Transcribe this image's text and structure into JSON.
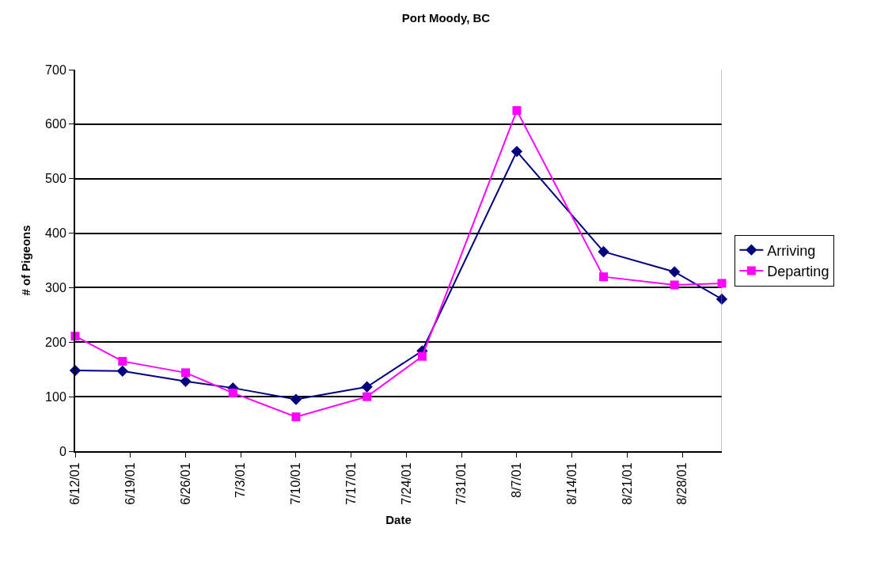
{
  "chart_data": {
    "type": "line",
    "title": "Port Moody, BC",
    "xlabel": "Date",
    "ylabel": "# of Pigeons",
    "x": [
      "--06-12",
      "--06-18",
      "--06-26",
      "--07-02",
      "--07-10",
      "--07-19",
      "--07-26",
      "--08-07",
      "--08-18",
      "--08-27",
      "--09-02"
    ],
    "series": [
      {
        "name": "Arriving",
        "color": "#000080",
        "marker": "diamond",
        "values": [
          148,
          147,
          128,
          116,
          95,
          118,
          184,
          550,
          366,
          329,
          279
        ]
      },
      {
        "name": "Departing",
        "color": "#ff00ff",
        "marker": "square",
        "values": [
          211,
          165,
          144,
          107,
          63,
          100,
          174,
          625,
          320,
          305,
          308
        ]
      }
    ],
    "xlim": [
      "--06-12",
      "--09-02"
    ],
    "xticks": [
      {
        "value": "--06-12",
        "label": "6/12/01"
      },
      {
        "value": "--06-19",
        "label": "6/19/01"
      },
      {
        "value": "--06-26",
        "label": "6/26/01"
      },
      {
        "value": "--07-03",
        "label": "7/3/01"
      },
      {
        "value": "--07-10",
        "label": "7/10/01"
      },
      {
        "value": "--07-17",
        "label": "7/17/01"
      },
      {
        "value": "--07-24",
        "label": "7/24/01"
      },
      {
        "value": "--07-31",
        "label": "7/31/01"
      },
      {
        "value": "--08-07",
        "label": "8/7/01"
      },
      {
        "value": "--08-14",
        "label": "8/14/01"
      },
      {
        "value": "--08-21",
        "label": "8/21/01"
      },
      {
        "value": "--08-28",
        "label": "8/28/01"
      }
    ],
    "ylim": [
      0,
      700
    ],
    "yticks": [
      0,
      100,
      200,
      300,
      400,
      500,
      600,
      700
    ],
    "grid": "y",
    "legend": "right",
    "line_style": "solid"
  }
}
